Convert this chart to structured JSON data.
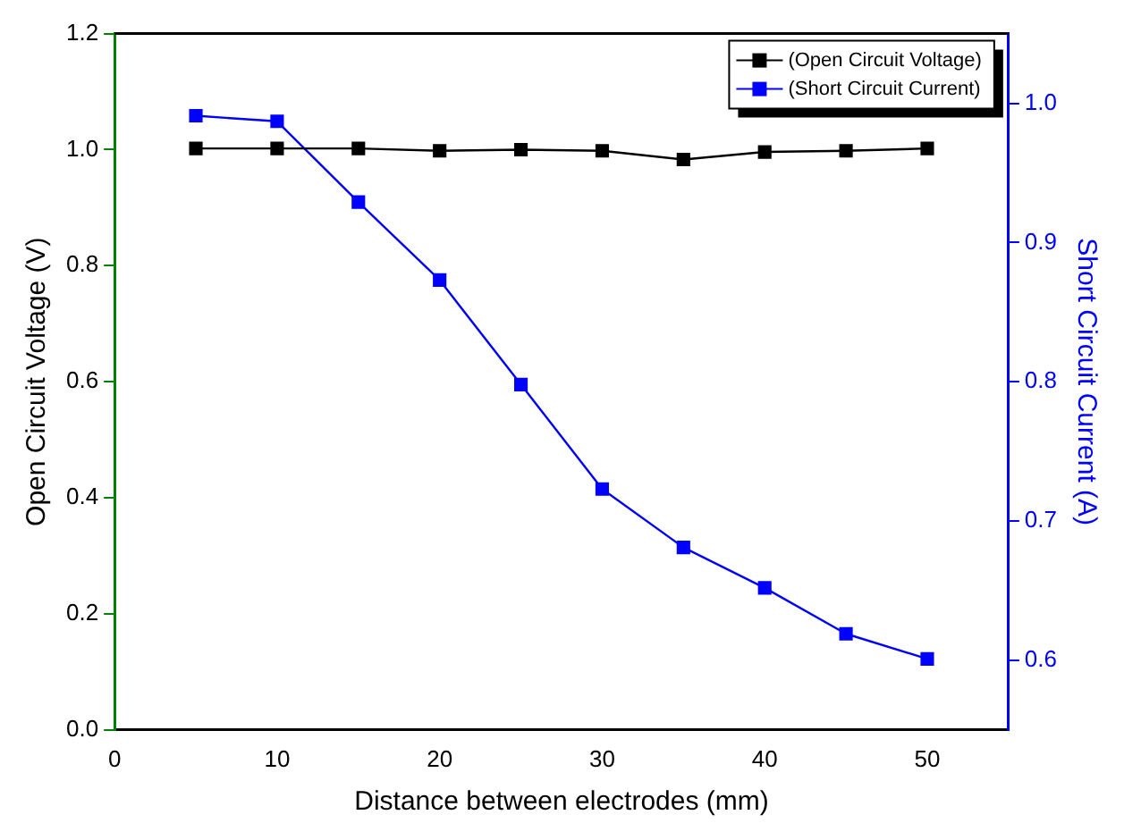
{
  "chart_data": {
    "type": "line",
    "xlabel": "Distance between electrodes (mm)",
    "ylabel": "Open Circuit Voltage (V)",
    "y2label": "Short Circuit Current (A)",
    "x": [
      5,
      10,
      15,
      20,
      25,
      30,
      35,
      40,
      45,
      50
    ],
    "xlim": [
      0,
      55
    ],
    "xticks": [
      0,
      10,
      20,
      30,
      40,
      50
    ],
    "ylim": [
      0,
      1.2
    ],
    "yticks": [
      {
        "value": 0,
        "label": "0.0"
      },
      0.2,
      0.4,
      0.6,
      0.8,
      {
        "value": 1,
        "label": "1.0"
      },
      1.2
    ],
    "y2lim": [
      0.55,
      1.05
    ],
    "y2ticks": [
      0.6,
      0.7,
      0.8,
      0.9,
      {
        "value": 1,
        "label": "1.0"
      }
    ],
    "marker": "square",
    "grid": false,
    "legend": "top right",
    "series": [
      {
        "name": "(Open Circuit Voltage)",
        "color": "#000000",
        "values": [
          1.002,
          1.002,
          1.002,
          0.998,
          1.0,
          0.998,
          0.983,
          0.996,
          0.998,
          1.002
        ]
      },
      {
        "name": "(Short Circuit Current)",
        "color": "#0000ff",
        "axis": "y2",
        "values": [
          0.991,
          0.987,
          0.929,
          0.873,
          0.798,
          0.723,
          0.681,
          0.652,
          0.619,
          0.601
        ]
      }
    ]
  }
}
